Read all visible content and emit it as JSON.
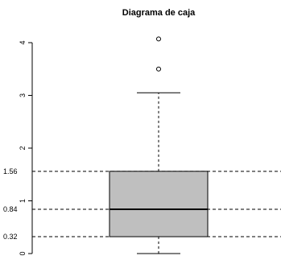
{
  "chart_data": {
    "type": "box",
    "title": "Diagrama de caja",
    "xlabel": "",
    "ylabel": "",
    "ylim": [
      0,
      4.1
    ],
    "y_ticks": [
      0,
      1,
      2,
      3,
      4
    ],
    "box": {
      "min": 0.0,
      "q1": 0.32,
      "median": 0.84,
      "q3": 1.56,
      "max": 3.05,
      "outliers": [
        3.5,
        4.07
      ],
      "fill": "#bfbfbf"
    },
    "reference_lines": [
      {
        "value": 1.56,
        "label": "1.56"
      },
      {
        "value": 0.84,
        "label": "0.84"
      },
      {
        "value": 0.32,
        "label": "0.32"
      }
    ]
  }
}
